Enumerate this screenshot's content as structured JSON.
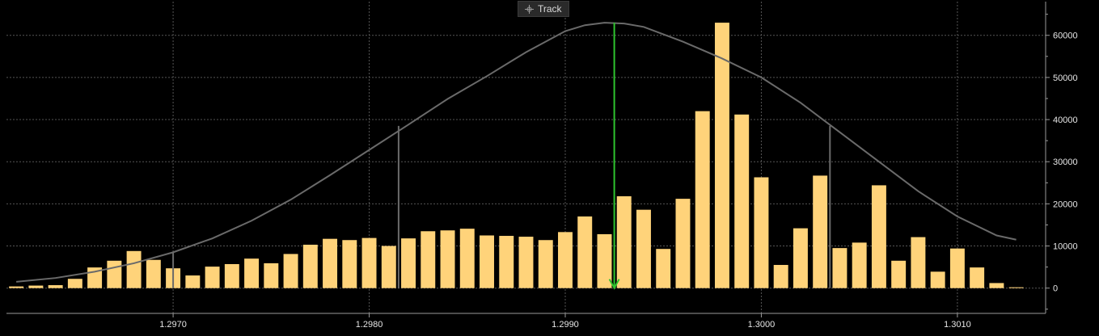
{
  "toolbar": {
    "track_label": "Track",
    "track_icon": "crosshair-icon"
  },
  "colors": {
    "bar": "#ffd37a",
    "curve": "#6a6a6a",
    "marker": "#2fc42f",
    "grid": "#555555",
    "axis": "#9a9a9a",
    "text": "#e6e6e6"
  },
  "chart_data": {
    "type": "bar",
    "title": "",
    "xlabel": "",
    "ylabel": "",
    "xlim": [
      1.29615,
      1.30145
    ],
    "ylim": [
      -6000,
      68000
    ],
    "x_ticks": [
      "1.2970",
      "1.2980",
      "1.2990",
      "1.3000",
      "1.3010"
    ],
    "x_tick_values": [
      1.297,
      1.298,
      1.299,
      1.3,
      1.301
    ],
    "y_ticks": [
      "0",
      "10000",
      "20000",
      "30000",
      "40000",
      "50000",
      "60000"
    ],
    "y_tick_values": [
      0,
      10000,
      20000,
      30000,
      40000,
      50000,
      60000
    ],
    "grid": true,
    "series": [
      {
        "type": "bar",
        "x": [
          1.2962,
          1.2963,
          1.2964,
          1.2965,
          1.2966,
          1.2967,
          1.2968,
          1.2969,
          1.297,
          1.2971,
          1.2972,
          1.2973,
          1.2974,
          1.2975,
          1.2976,
          1.2977,
          1.2978,
          1.2979,
          1.298,
          1.2981,
          1.2982,
          1.2983,
          1.2984,
          1.2985,
          1.2986,
          1.2987,
          1.2988,
          1.2989,
          1.299,
          1.2991,
          1.2992,
          1.2993,
          1.2994,
          1.2995,
          1.2996,
          1.2997,
          1.2998,
          1.2999,
          1.3,
          1.3001,
          1.3002,
          1.3003,
          1.3004,
          1.3005,
          1.3006,
          1.3007,
          1.3008,
          1.3009,
          1.301,
          1.3011,
          1.3012,
          1.3013
        ],
        "values": [
          400,
          600,
          700,
          2200,
          4900,
          6500,
          8800,
          6700,
          4700,
          3000,
          5100,
          5700,
          7000,
          5900,
          8100,
          10300,
          11700,
          11400,
          11900,
          10000,
          11800,
          13500,
          13700,
          14100,
          12500,
          12400,
          12200,
          11400,
          13300,
          17000,
          12800,
          21800,
          18600,
          9300,
          21200,
          42000,
          63000,
          41200,
          26300,
          5500,
          14200,
          26700,
          9500,
          10800,
          24400,
          6500,
          12100,
          3900,
          9400,
          4900,
          1200,
          200
        ]
      },
      {
        "type": "line",
        "name": "",
        "x": [
          1.2962,
          1.2964,
          1.2966,
          1.2968,
          1.297,
          1.2972,
          1.2974,
          1.2976,
          1.2978,
          1.298,
          1.2982,
          1.2984,
          1.2986,
          1.2988,
          1.299,
          1.2991,
          1.2992,
          1.2993,
          1.2994,
          1.2996,
          1.2998,
          1.3,
          1.3002,
          1.3004,
          1.3006,
          1.3008,
          1.301,
          1.3012,
          1.3013
        ],
        "values": [
          1500,
          2400,
          3900,
          5900,
          8500,
          11800,
          16000,
          21000,
          26800,
          32800,
          38800,
          44900,
          50300,
          56000,
          61000,
          62400,
          63000,
          62800,
          62000,
          58500,
          54500,
          50000,
          44000,
          37000,
          30000,
          23000,
          17000,
          12500,
          11500
        ]
      }
    ],
    "vertical_lines": [
      {
        "x": 1.297,
        "y_top": 8500
      },
      {
        "x": 1.29815,
        "y_top": 38500
      },
      {
        "x": 1.30035,
        "y_top": 38500
      }
    ],
    "marker": {
      "type": "arrow",
      "x": 1.29925,
      "y_top": 63000,
      "y_bottom": 0
    }
  }
}
